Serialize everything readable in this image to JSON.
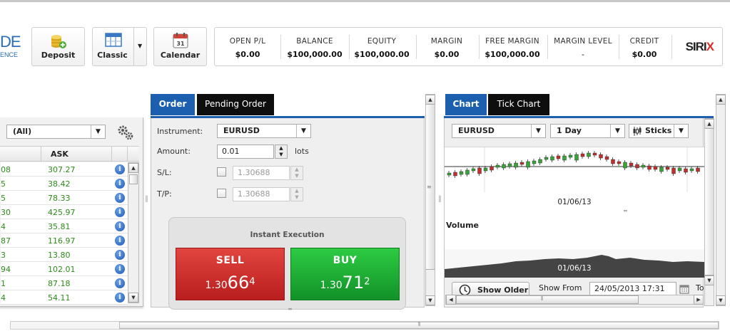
{
  "logo": {
    "line1": "DE",
    "line2": "ENCE"
  },
  "toolbar": {
    "deposit_label": "Deposit",
    "classic_label": "Classic",
    "calendar_label": "Calendar",
    "calendar_day": "31"
  },
  "account": {
    "open_pl": {
      "label": "OPEN P/L",
      "value": "$0.00"
    },
    "balance": {
      "label": "BALANCE",
      "value": "$100,000.00"
    },
    "equity": {
      "label": "EQUITY",
      "value": "$100,000.00"
    },
    "margin": {
      "label": "MARGIN",
      "value": "$0.00"
    },
    "free_margin": {
      "label": "FREE MARGIN",
      "value": "$100,000.00"
    },
    "margin_level": {
      "label": "MARGIN LEVEL",
      "value": "-"
    },
    "credit": {
      "label": "CREDIT",
      "value": "$0.00"
    },
    "brand_a": "SIRI",
    "brand_b": "X"
  },
  "quotes": {
    "filter": "(All)",
    "ask_header": "ASK",
    "rows": [
      {
        "bid": "08",
        "ask": "307.27"
      },
      {
        "bid": "5",
        "ask": "38.42"
      },
      {
        "bid": "5",
        "ask": "78.33"
      },
      {
        "bid": "30",
        "ask": "425.97"
      },
      {
        "bid": "4",
        "ask": "35.81"
      },
      {
        "bid": "87",
        "ask": "116.97"
      },
      {
        "bid": "3",
        "ask": "13.80"
      },
      {
        "bid": "94",
        "ask": "102.01"
      },
      {
        "bid": "1",
        "ask": "87.18"
      },
      {
        "bid": "4",
        "ask": "54.11"
      }
    ]
  },
  "order": {
    "tab_order": "Order",
    "tab_pending": "Pending Order",
    "instrument_label": "Instrument:",
    "instrument_value": "EURUSD",
    "amount_label": "Amount:",
    "amount_value": "0.01",
    "lots_label": "lots",
    "sl_label": "S/L:",
    "sl_value": "1.30688",
    "tp_label": "T/P:",
    "tp_value": "1.30688",
    "exec_title": "Instant Execution",
    "sell_label": "SELL",
    "sell_prefix": "1.30",
    "sell_pips": "66",
    "sell_fraction": "4",
    "buy_label": "BUY",
    "buy_prefix": "1.30",
    "buy_pips": "71",
    "buy_fraction": "2"
  },
  "chart": {
    "tab_chart": "Chart",
    "tab_tick": "Tick Chart",
    "instrument": "EURUSD",
    "timeframe": "1 Day",
    "style": "Sticks",
    "date_label_1": "01/06/13",
    "volume_label": "Volume",
    "date_label_2": "01/06/13",
    "show_older": "Show Older",
    "show_from_label": "Show From",
    "show_from_value": "24/05/2013 17:31",
    "to_label": "To"
  }
}
